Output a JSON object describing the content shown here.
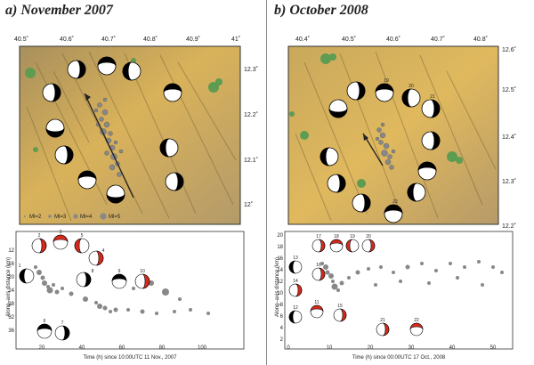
{
  "panels": [
    {
      "title": "a) November 2007",
      "map": {
        "lon_ticks": [
          "40.5˚",
          "40.6˚",
          "40.7˚",
          "40.8˚",
          "40.9˚",
          "41˚"
        ],
        "lat_ticks": [
          "12.3˚",
          "12.2˚",
          "12.1˚",
          "12˚"
        ],
        "legend": [
          "Ml=2",
          "Ml=3",
          "Ml=4",
          "Ml=5"
        ]
      },
      "plot": {
        "ylabel": "Along–axis distance (km)",
        "xlabel": "Time (h) since 10:00UTC 11 Nov., 2007",
        "y_ticks": [
          "12",
          "16",
          "20",
          "24",
          "28",
          "32",
          "36"
        ],
        "x_ticks": [
          "20",
          "40",
          "60",
          "80",
          "100"
        ],
        "event_labels": [
          "2",
          "3",
          "5",
          "4",
          "8",
          "9",
          "10",
          "1",
          "6",
          "7"
        ]
      }
    },
    {
      "title": "b) October 2008",
      "map": {
        "lon_ticks": [
          "40.4˚",
          "40.5˚",
          "40.6˚",
          "40.7˚",
          "40.8˚"
        ],
        "lat_ticks": [
          "12.6˚",
          "12.5˚",
          "12.4˚",
          "12.3˚",
          "12.2˚"
        ],
        "beach_labels": [
          "19",
          "20",
          "21",
          "22"
        ]
      },
      "plot": {
        "ylabel": "Along–axis distance (km)",
        "xlabel": "Time (h) since 00:00UTC 17 Oct., 2008",
        "y_ticks": [
          "20",
          "18",
          "16",
          "14",
          "12",
          "10",
          "8",
          "6",
          "4",
          "2"
        ],
        "x_ticks": [
          "0",
          "10",
          "20",
          "30",
          "40",
          "50"
        ],
        "event_labels": [
          "17",
          "18",
          "19",
          "20",
          "16",
          "13",
          "14",
          "11",
          "12",
          "15",
          "21",
          "22"
        ]
      }
    }
  ]
}
